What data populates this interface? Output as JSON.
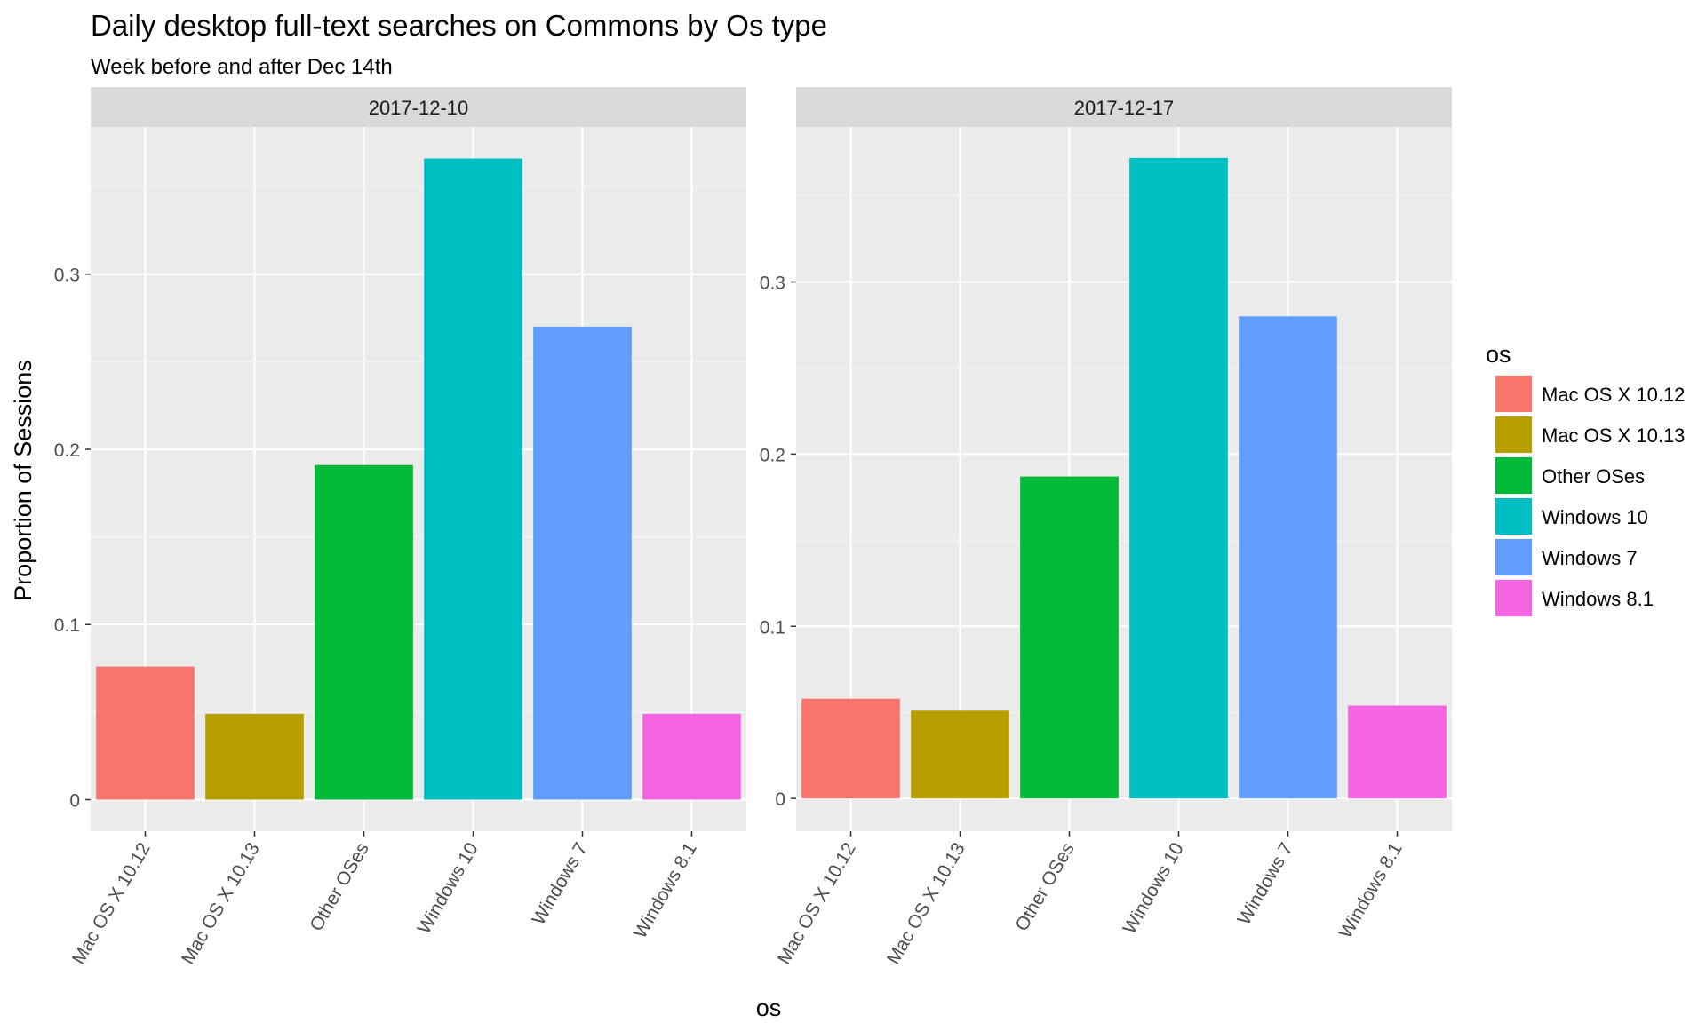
{
  "chart_data": {
    "type": "bar",
    "title": "Daily desktop full-text searches on Commons by Os type",
    "subtitle": "Week before and after Dec 14th",
    "xlabel": "os",
    "ylabel": "Proportion of Sessions",
    "legend": {
      "title": "os",
      "placement": "right",
      "entries": [
        {
          "label": "Mac OS X 10.12",
          "color": "#F8766D"
        },
        {
          "label": "Mac OS X 10.13",
          "color": "#B79F00"
        },
        {
          "label": "Other OSes",
          "color": "#00BA38"
        },
        {
          "label": "Windows 10",
          "color": "#00BFC4"
        },
        {
          "label": "Windows 7",
          "color": "#619CFF"
        },
        {
          "label": "Windows 8.1",
          "color": "#F564E3"
        }
      ]
    },
    "categories": [
      "Mac OS X 10.12",
      "Mac OS X 10.13",
      "Other OSes",
      "Windows 10",
      "Windows 7",
      "Windows 8.1"
    ],
    "grid": true,
    "facets": [
      {
        "label": "2017-12-10",
        "ylim": [
          -0.018,
          0.384
        ],
        "yticks": [
          0,
          0.1,
          0.2,
          0.3
        ],
        "ytick_labels": [
          "0",
          "0.1",
          "0.2",
          "0.3"
        ],
        "values": [
          0.076,
          0.049,
          0.191,
          0.366,
          0.27,
          0.049
        ]
      },
      {
        "label": "2017-12-17",
        "ylim": [
          -0.019,
          0.39
        ],
        "yticks": [
          0,
          0.1,
          0.2,
          0.3
        ],
        "ytick_labels": [
          "0",
          "0.1",
          "0.2",
          "0.3"
        ],
        "values": [
          0.058,
          0.051,
          0.187,
          0.372,
          0.28,
          0.054
        ]
      }
    ]
  }
}
